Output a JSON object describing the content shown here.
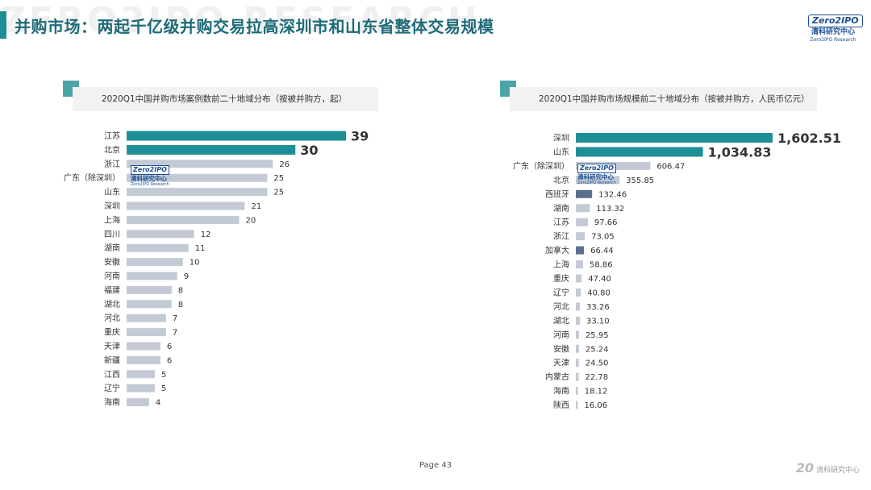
{
  "header": {
    "title": "并购市场：两起千亿级并购交易拉高深圳市和山东省整体交易规模",
    "watermark": "ZERO2IPO RESEARCH",
    "logo": {
      "brand": "Zero2IPO",
      "cn": "清科研究中心",
      "en": "Zero2IPO Research"
    }
  },
  "colors": {
    "accent": "#1e8f96",
    "bar_gray": "#c3cad6",
    "bar_dark": "#5b6e8c",
    "header_square": "#4da4a8"
  },
  "icons": {
    "logo": "zero2ipo-logo-icon",
    "footer": "anniversary-20-logo-icon"
  },
  "chart_data": [
    {
      "type": "bar",
      "orientation": "horizontal",
      "title": "2020Q1中国并购市场案例数前二十地域分布（按被并购方，起）",
      "categories": [
        "江苏",
        "北京",
        "浙江",
        "广东（除深圳）",
        "山东",
        "深圳",
        "上海",
        "四川",
        "湖南",
        "安徽",
        "河南",
        "福建",
        "湖北",
        "河北",
        "重庆",
        "天津",
        "新疆",
        "江西",
        "辽宁",
        "海南"
      ],
      "values": [
        39,
        30,
        26,
        25,
        25,
        21,
        20,
        12,
        11,
        10,
        9,
        8,
        8,
        7,
        7,
        6,
        6,
        5,
        5,
        4
      ],
      "value_labels": [
        "39",
        "30",
        "26",
        "25",
        "25",
        "21",
        "20",
        "12",
        "11",
        "10",
        "9",
        "8",
        "8",
        "7",
        "7",
        "6",
        "6",
        "5",
        "5",
        "4"
      ],
      "highlight": [
        0,
        1
      ],
      "xlim": [
        0,
        39
      ]
    },
    {
      "type": "bar",
      "orientation": "horizontal",
      "title": "2020Q1中国并购市场规模前二十地域分布（按被并购方，人民币亿元）",
      "categories": [
        "深圳",
        "山东",
        "广东（除深圳）",
        "北京",
        "西班牙",
        "湖南",
        "江苏",
        "浙江",
        "加拿大",
        "上海",
        "重庆",
        "辽宁",
        "河北",
        "湖北",
        "河南",
        "安徽",
        "天津",
        "内蒙古",
        "海南",
        "陕西"
      ],
      "values": [
        1602.51,
        1034.83,
        606.47,
        355.85,
        132.46,
        113.32,
        97.66,
        73.05,
        66.44,
        58.86,
        47.4,
        40.8,
        33.26,
        33.1,
        25.95,
        25.24,
        24.5,
        22.78,
        18.12,
        16.06
      ],
      "value_labels": [
        "1,602.51",
        "1,034.83",
        "606.47",
        "355.85",
        "132.46",
        "113.32",
        "97.66",
        "73.05",
        "66.44",
        "58.86",
        "47.40",
        "40.80",
        "33.26",
        "33.10",
        "25.95",
        "25.24",
        "24.50",
        "22.78",
        "18.12",
        "16.06"
      ],
      "highlight": [
        0,
        1
      ],
      "dark": [
        4,
        8
      ],
      "xlim": [
        0,
        1602.51
      ]
    }
  ],
  "footer": {
    "page_label": "Page",
    "page_number": "43",
    "logo_text": "清科研究中心"
  }
}
